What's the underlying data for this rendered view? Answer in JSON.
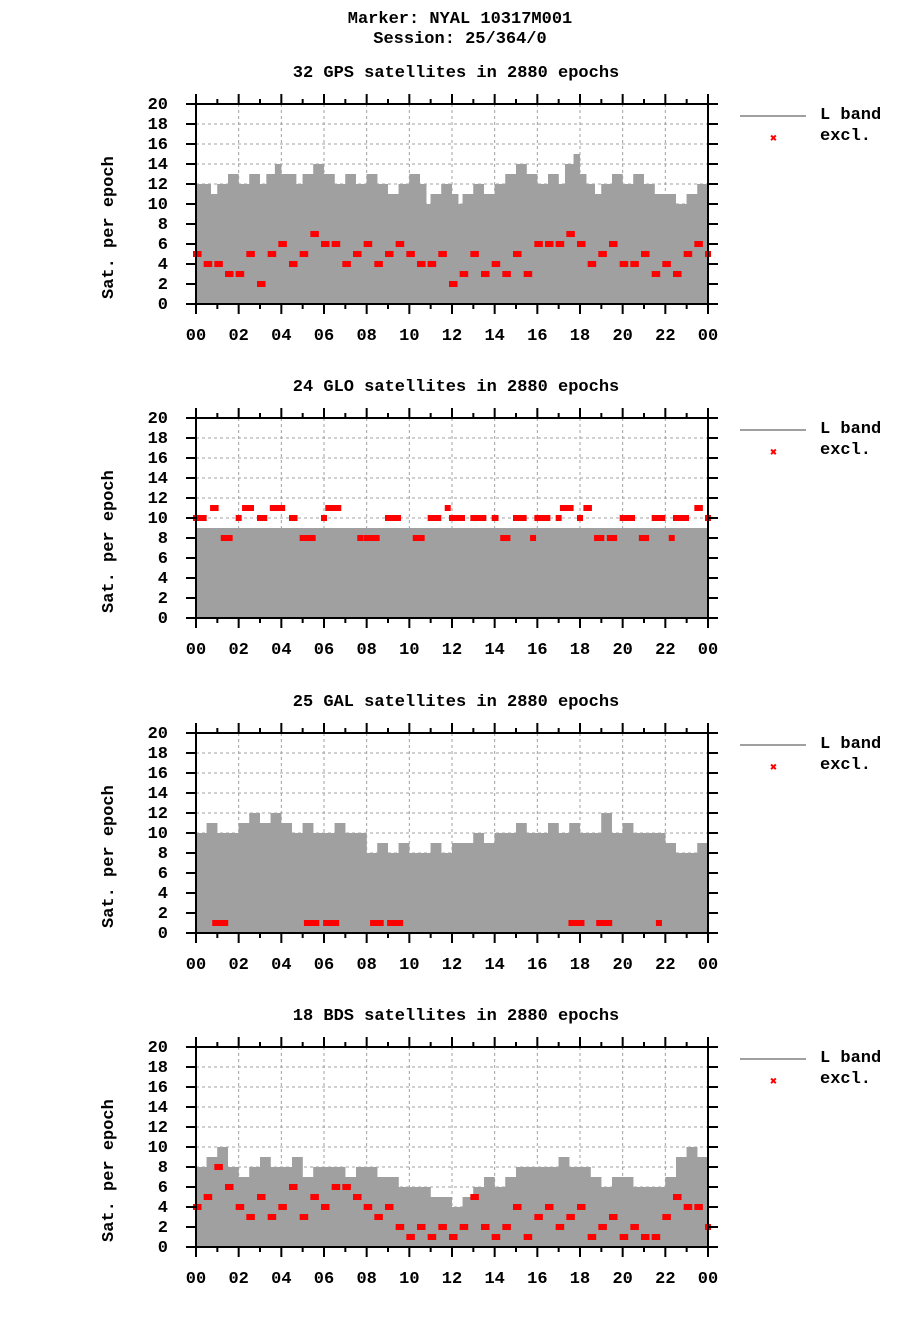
{
  "header": {
    "marker": "Marker: NYAL 10317M001",
    "session": "Session: 25/364/0"
  },
  "legend": {
    "line_label": "L band",
    "marker_label": "excl."
  },
  "colors": {
    "fill": "#a0a0a0",
    "excl": "#ff0000",
    "grid": "#a0a0a0",
    "axis": "#000000"
  },
  "chart_data": [
    {
      "type": "area",
      "title": "32 GPS satellites in 2880 epochs",
      "xlabel": "",
      "ylabel": "Sat. per epoch",
      "xticks": [
        "00",
        "02",
        "04",
        "06",
        "08",
        "10",
        "12",
        "14",
        "16",
        "18",
        "20",
        "22",
        "00"
      ],
      "yticks": [
        0,
        2,
        4,
        6,
        8,
        10,
        12,
        14,
        16,
        18,
        20
      ],
      "ylim": [
        0,
        20
      ],
      "xlim_hours": [
        0,
        24
      ],
      "series": [
        {
          "name": "L band",
          "x_hours": [
            0,
            0.5,
            0.7,
            1,
            1.5,
            2,
            2.5,
            3,
            3.3,
            3.7,
            4,
            4.7,
            5,
            5.5,
            6,
            6.5,
            7,
            7.5,
            8,
            8.5,
            9,
            9.5,
            10,
            10.5,
            10.8,
            11,
            11.5,
            12,
            12.3,
            12.5,
            13,
            13.5,
            14,
            14.5,
            15,
            15.5,
            16,
            16.5,
            17,
            17.3,
            17.7,
            18,
            18.3,
            18.7,
            19,
            19.5,
            20,
            20.5,
            21,
            21.5,
            22,
            22.5,
            23,
            23.5,
            24
          ],
          "values": [
            12,
            12,
            11,
            12,
            13,
            12,
            13,
            12,
            13,
            14,
            13,
            12,
            13,
            14,
            13,
            12,
            13,
            12,
            13,
            12,
            11,
            12,
            13,
            12,
            10,
            11,
            12,
            11,
            10,
            11,
            12,
            11,
            12,
            13,
            14,
            13,
            12,
            13,
            12,
            14,
            15,
            13,
            12,
            11,
            12,
            13,
            12,
            13,
            12,
            11,
            11,
            10,
            11,
            12,
            12
          ]
        },
        {
          "name": "excl.",
          "x_hours": [
            0,
            0.5,
            1,
            1.5,
            2,
            2.5,
            3,
            3.5,
            4,
            4.5,
            5,
            5.5,
            6,
            6.5,
            7,
            7.5,
            8,
            8.5,
            9,
            9.5,
            10,
            10.5,
            11,
            11.5,
            12,
            12.5,
            13,
            13.5,
            14,
            14.5,
            15,
            15.5,
            16,
            16.5,
            17,
            17.5,
            18,
            18.5,
            19,
            19.5,
            20,
            20.5,
            21,
            21.5,
            22,
            22.5,
            23,
            23.5,
            24
          ],
          "values": [
            5,
            4,
            4,
            3,
            3,
            5,
            2,
            5,
            6,
            4,
            5,
            7,
            6,
            6,
            4,
            5,
            6,
            4,
            5,
            6,
            5,
            4,
            4,
            5,
            2,
            3,
            5,
            3,
            4,
            3,
            5,
            3,
            6,
            6,
            6,
            7,
            6,
            4,
            5,
            6,
            4,
            4,
            5,
            3,
            4,
            3,
            5,
            6,
            5
          ]
        }
      ]
    },
    {
      "type": "area",
      "title": "24 GLO satellites in 2880 epochs",
      "xlabel": "",
      "ylabel": "Sat. per epoch",
      "xticks": [
        "00",
        "02",
        "04",
        "06",
        "08",
        "10",
        "12",
        "14",
        "16",
        "18",
        "20",
        "22",
        "00"
      ],
      "yticks": [
        0,
        2,
        4,
        6,
        8,
        10,
        12,
        14,
        16,
        18,
        20
      ],
      "ylim": [
        0,
        20
      ],
      "xlim_hours": [
        0,
        24
      ],
      "series": [
        {
          "name": "L band",
          "x_hours": [
            0,
            24
          ],
          "values": [
            9,
            9
          ]
        },
        {
          "name": "excl.",
          "x_hours": [
            0,
            0.8,
            1.3,
            2,
            2.3,
            3,
            3.6,
            4.5,
            5,
            6,
            6.2,
            7.7,
            8,
            9,
            10.3,
            11,
            11.8,
            12,
            13,
            14,
            14.4,
            15,
            15.8,
            16,
            17,
            17.2,
            18,
            18.3,
            18.8,
            19.4,
            20,
            20.9,
            21.5,
            22.3,
            22.5,
            23.5,
            24
          ],
          "values": [
            10,
            11,
            8,
            10,
            11,
            10,
            11,
            10,
            8,
            10,
            11,
            8,
            8,
            10,
            8,
            10,
            11,
            10,
            10,
            10,
            8,
            10,
            8,
            10,
            10,
            11,
            10,
            11,
            8,
            8,
            10,
            8,
            10,
            8,
            10,
            11,
            10
          ]
        }
      ]
    },
    {
      "type": "area",
      "title": "25 GAL satellites in 2880 epochs",
      "xlabel": "",
      "ylabel": "Sat. per epoch",
      "xticks": [
        "00",
        "02",
        "04",
        "06",
        "08",
        "10",
        "12",
        "14",
        "16",
        "18",
        "20",
        "22",
        "00"
      ],
      "yticks": [
        0,
        2,
        4,
        6,
        8,
        10,
        12,
        14,
        16,
        18,
        20
      ],
      "ylim": [
        0,
        20
      ],
      "xlim_hours": [
        0,
        24
      ],
      "series": [
        {
          "name": "L band",
          "x_hours": [
            0,
            0.5,
            1,
            1.5,
            2,
            2.5,
            3,
            3.5,
            4,
            4.5,
            5,
            5.5,
            6,
            6.5,
            7,
            7.5,
            8,
            8.5,
            9,
            9.5,
            10,
            10.5,
            11,
            11.5,
            12,
            12.5,
            13,
            13.5,
            14,
            14.5,
            15,
            15.5,
            16,
            16.5,
            17,
            17.5,
            18,
            18.5,
            19,
            19.5,
            20,
            20.5,
            21,
            21.5,
            22,
            22.5,
            23,
            23.5,
            24
          ],
          "values": [
            10,
            11,
            10,
            10,
            11,
            12,
            11,
            12,
            11,
            10,
            11,
            10,
            10,
            11,
            10,
            10,
            8,
            9,
            8,
            9,
            8,
            8,
            9,
            8,
            9,
            9,
            10,
            9,
            10,
            10,
            11,
            10,
            10,
            11,
            10,
            11,
            10,
            10,
            12,
            10,
            11,
            10,
            10,
            10,
            9,
            8,
            8,
            9,
            7
          ]
        },
        {
          "name": "excl.",
          "x_hours": [
            0.9,
            5.2,
            6.1,
            8.3,
            9.1,
            17.6,
            18.9,
            21.7
          ],
          "values": [
            1,
            1,
            1,
            1,
            1,
            1,
            1,
            1
          ]
        }
      ]
    },
    {
      "type": "area",
      "title": "18 BDS satellites in 2880 epochs",
      "xlabel": "",
      "ylabel": "Sat. per epoch",
      "xticks": [
        "00",
        "02",
        "04",
        "06",
        "08",
        "10",
        "12",
        "14",
        "16",
        "18",
        "20",
        "22",
        "00"
      ],
      "yticks": [
        0,
        2,
        4,
        6,
        8,
        10,
        12,
        14,
        16,
        18,
        20
      ],
      "ylim": [
        0,
        20
      ],
      "xlim_hours": [
        0,
        24
      ],
      "series": [
        {
          "name": "L band",
          "x_hours": [
            0,
            0.5,
            1,
            1.5,
            2,
            2.5,
            3,
            3.5,
            4,
            4.5,
            5,
            5.5,
            6,
            6.5,
            7,
            7.5,
            8,
            8.5,
            9,
            9.5,
            10,
            10.5,
            11,
            11.5,
            12,
            12.5,
            13,
            13.5,
            14,
            14.5,
            15,
            15.5,
            16,
            16.5,
            17,
            17.5,
            18,
            18.5,
            19,
            19.5,
            20,
            20.5,
            21,
            21.5,
            22,
            22.5,
            23,
            23.5,
            24
          ],
          "values": [
            8,
            9,
            10,
            8,
            7,
            8,
            9,
            8,
            8,
            9,
            7,
            8,
            8,
            8,
            7,
            8,
            8,
            7,
            7,
            6,
            6,
            6,
            5,
            5,
            4,
            5,
            6,
            7,
            6,
            7,
            8,
            8,
            8,
            8,
            9,
            8,
            8,
            7,
            6,
            7,
            7,
            6,
            6,
            6,
            7,
            9,
            10,
            9,
            8
          ]
        },
        {
          "name": "excl.",
          "x_hours": [
            0,
            0.5,
            1,
            1.5,
            2,
            2.5,
            3,
            3.5,
            4,
            4.5,
            5,
            5.5,
            6,
            6.5,
            7,
            7.5,
            8,
            8.5,
            9,
            9.5,
            10,
            10.5,
            11,
            11.5,
            12,
            12.5,
            13,
            13.5,
            14,
            14.5,
            15,
            15.5,
            16,
            16.5,
            17,
            17.5,
            18,
            18.5,
            19,
            19.5,
            20,
            20.5,
            21,
            21.5,
            22,
            22.5,
            23,
            23.5,
            24
          ],
          "values": [
            4,
            5,
            8,
            6,
            4,
            3,
            5,
            3,
            4,
            6,
            3,
            5,
            4,
            6,
            6,
            5,
            4,
            3,
            4,
            2,
            1,
            2,
            1,
            2,
            1,
            2,
            5,
            2,
            1,
            2,
            4,
            1,
            3,
            4,
            2,
            3,
            4,
            1,
            2,
            3,
            1,
            2,
            1,
            1,
            3,
            5,
            4,
            4,
            2
          ]
        }
      ]
    }
  ]
}
